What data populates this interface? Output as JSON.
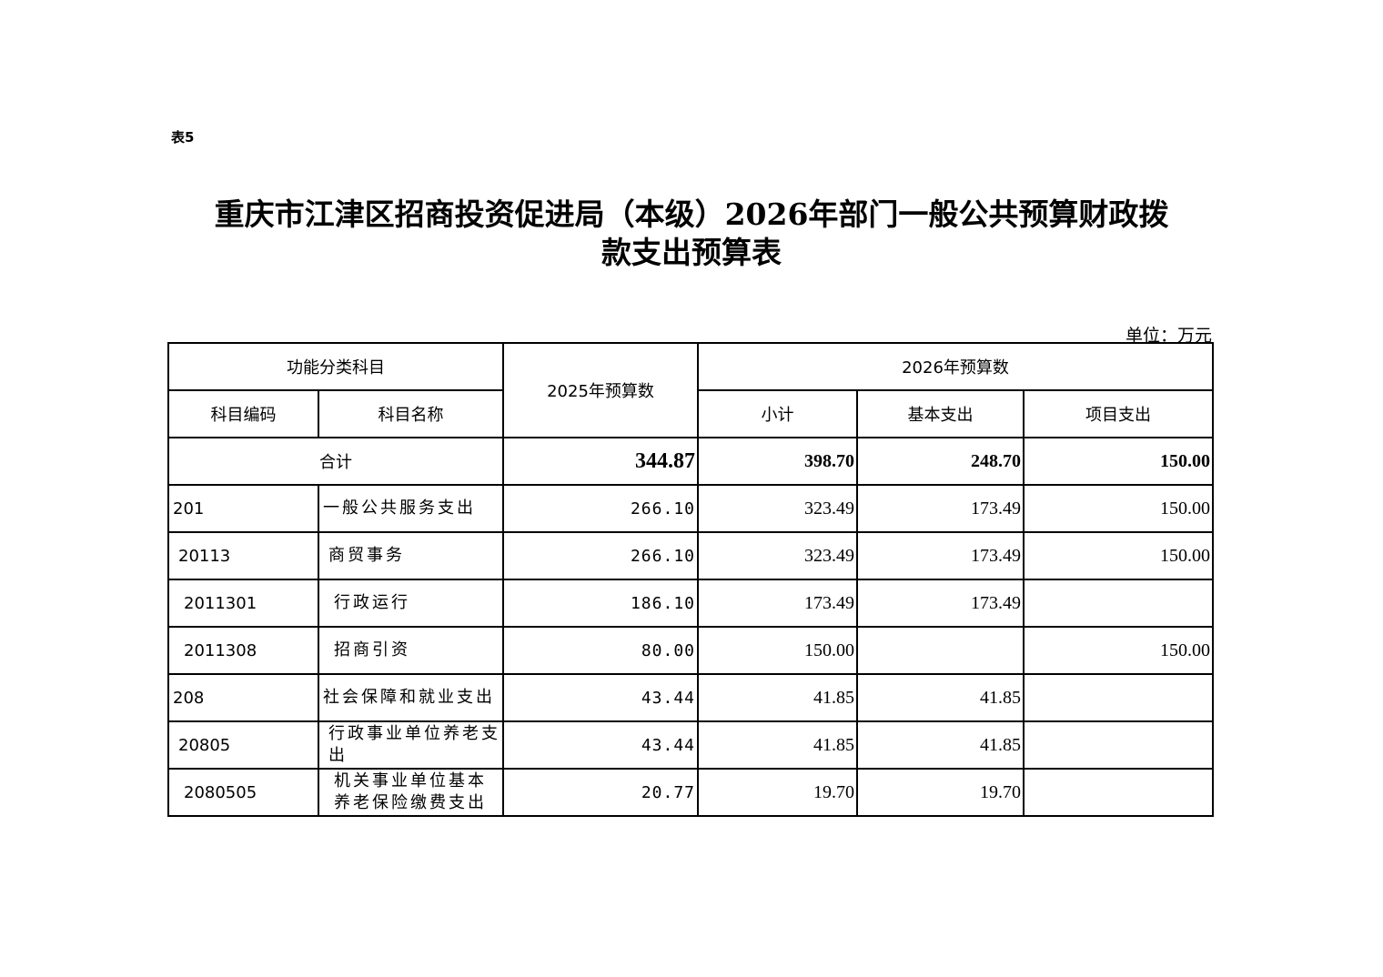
{
  "table_label": "表5",
  "title_line1": "重庆市江津区招商投资促进局（本级）2026年部门一般公共预算财政拨",
  "title_line2": "款支出预算表",
  "unit": "单位：万元",
  "headers": {
    "functional_category": "功能分类科目",
    "budget_2025": "2025年预算数",
    "budget_2026": "2026年预算数",
    "code": "科目编码",
    "name": "科目名称",
    "subtotal": "小计",
    "basic": "基本支出",
    "project": "项目支出"
  },
  "total": {
    "label": "合计",
    "b2025": "344.87",
    "subtotal": "398.70",
    "basic": "248.70",
    "project": "150.00"
  },
  "rows": [
    {
      "code": "201",
      "name": "一般公共服务支出",
      "b2025": "266.10",
      "subtotal": "323.49",
      "basic": "173.49",
      "project": "150.00",
      "indent": 0
    },
    {
      "code": "20113",
      "name": "商贸事务",
      "b2025": "266.10",
      "subtotal": "323.49",
      "basic": "173.49",
      "project": "150.00",
      "indent": 1
    },
    {
      "code": "2011301",
      "name": "行政运行",
      "b2025": "186.10",
      "subtotal": "173.49",
      "basic": "173.49",
      "project": "",
      "indent": 2
    },
    {
      "code": "2011308",
      "name": "招商引资",
      "b2025": "80.00",
      "subtotal": "150.00",
      "basic": "",
      "project": "150.00",
      "indent": 2
    },
    {
      "code": "208",
      "name": "社会保障和就业支出",
      "b2025": "43.44",
      "subtotal": "41.85",
      "basic": "41.85",
      "project": "",
      "indent": 0
    },
    {
      "code": "20805",
      "name": "行政事业单位养老支出",
      "b2025": "43.44",
      "subtotal": "41.85",
      "basic": "41.85",
      "project": "",
      "indent": 1
    },
    {
      "code": "2080505",
      "name": "机关事业单位基本养老保险缴费支出",
      "b2025": "20.77",
      "subtotal": "19.70",
      "basic": "19.70",
      "project": "",
      "indent": 2
    }
  ]
}
